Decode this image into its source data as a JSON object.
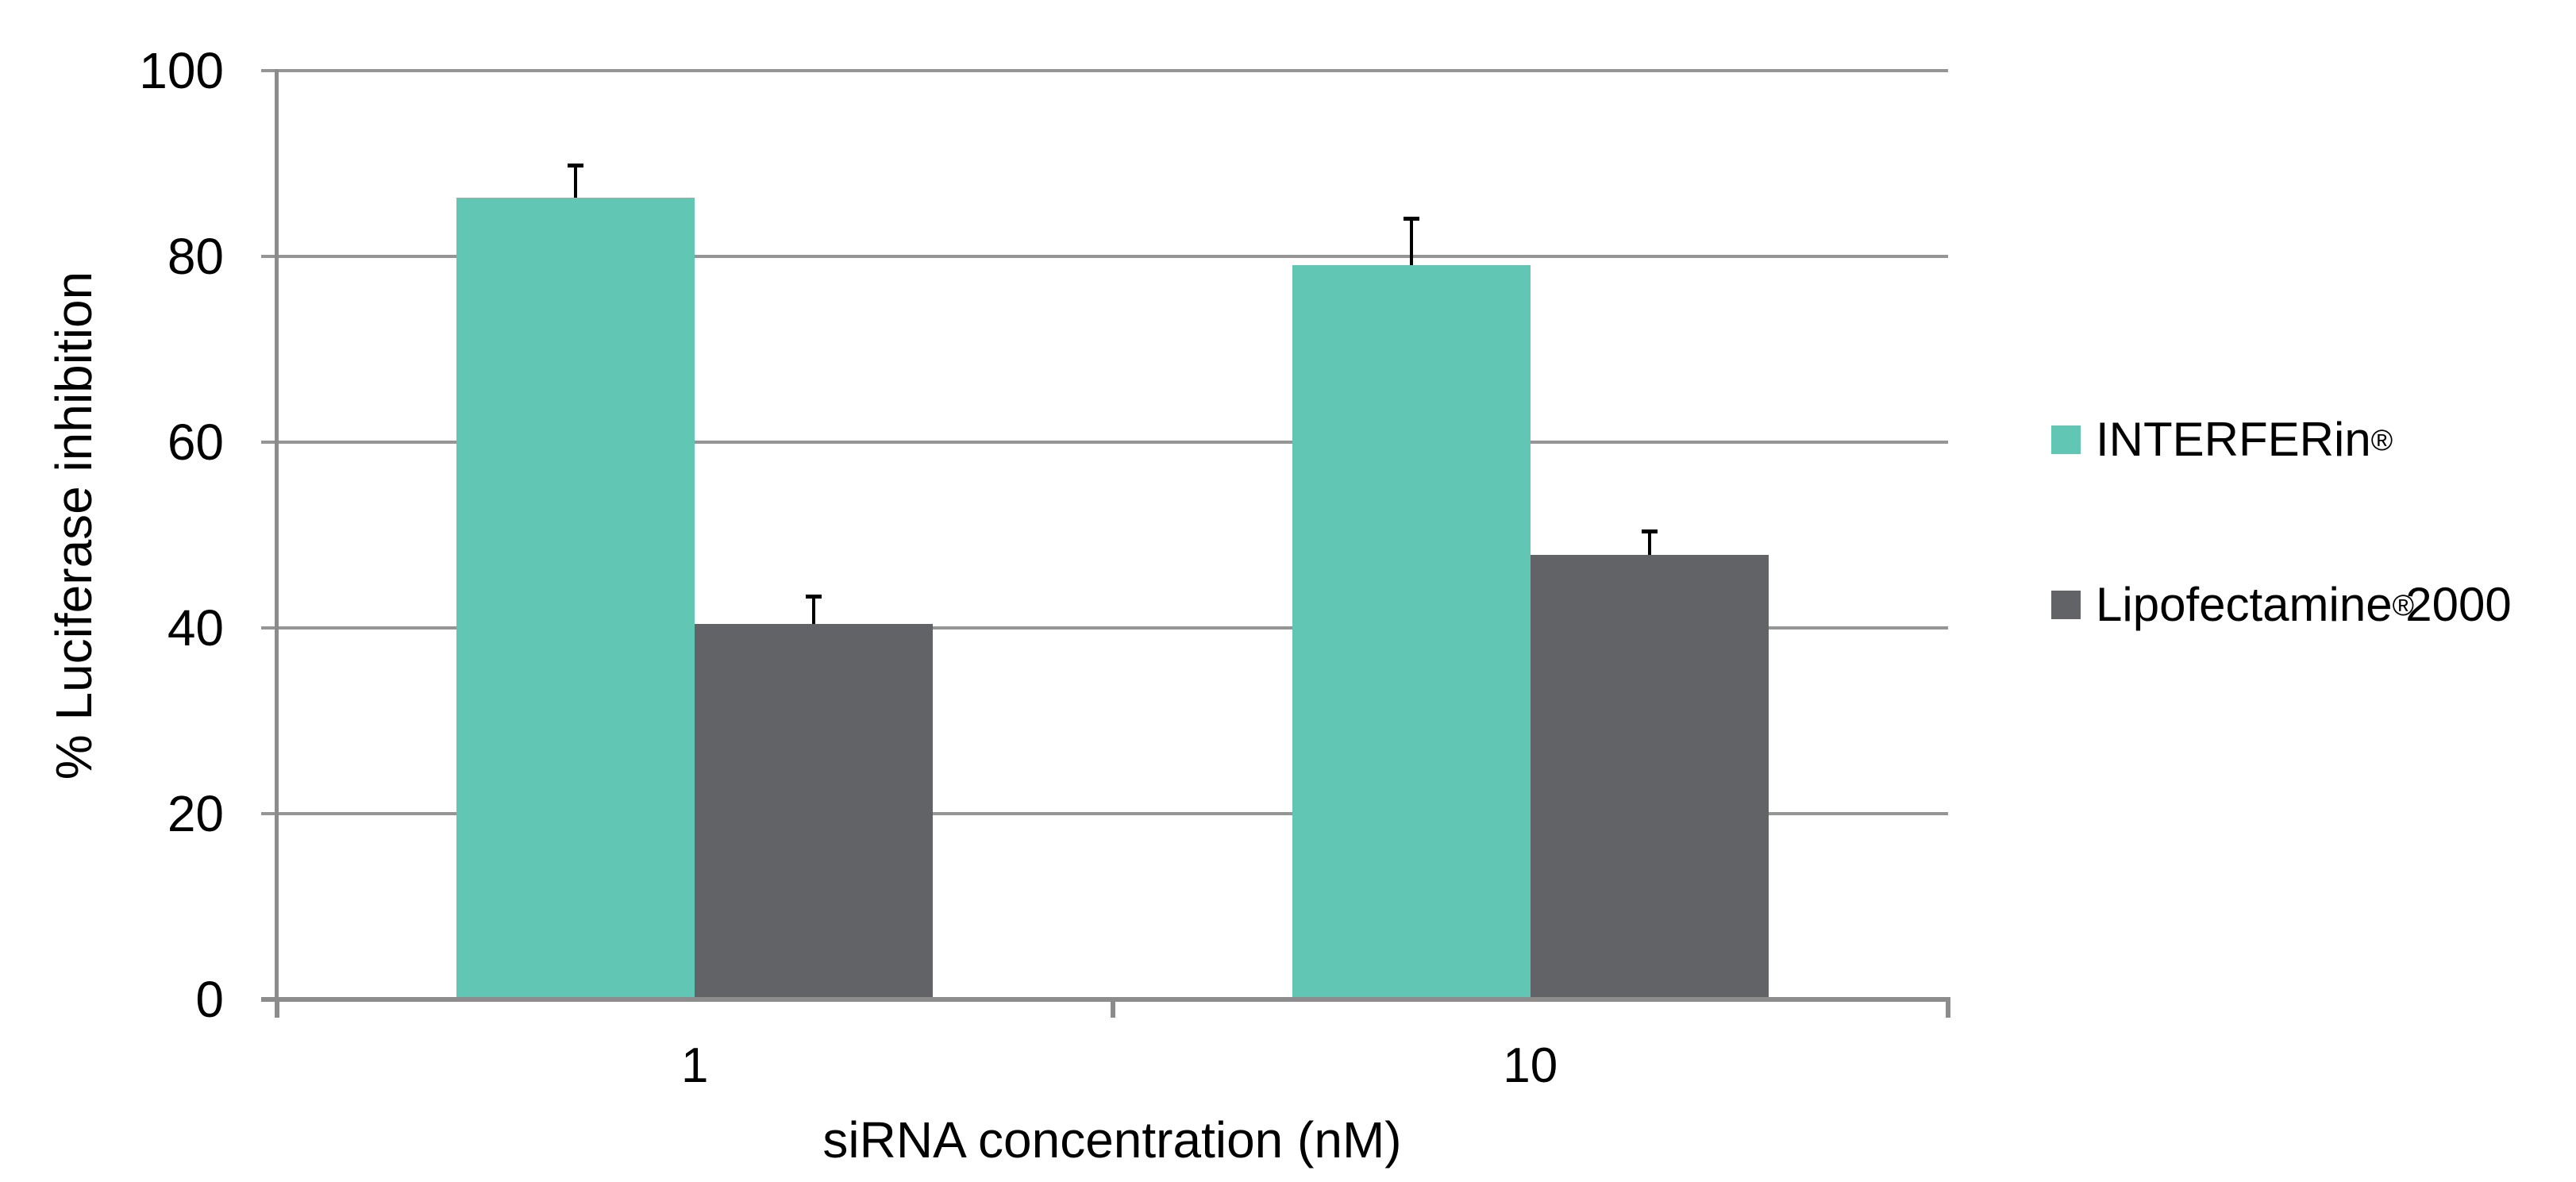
{
  "chart_data": {
    "type": "bar",
    "title": "",
    "categories": [
      "1",
      "10"
    ],
    "series": [
      {
        "name": "INTERFERin®",
        "color": "#62C6B4",
        "values": [
          86.3,
          79.1
        ],
        "errors_plus": [
          3.5,
          5.0
        ]
      },
      {
        "name": "Lipofectamine® 2000",
        "color": "#616367",
        "values": [
          40.4,
          47.9
        ],
        "errors_plus": [
          3.0,
          2.5
        ]
      }
    ],
    "xlabel": "siRNA concentration (nM)",
    "ylabel": "% Luciferase inhibition",
    "ylim": [
      0,
      100
    ],
    "yticks": [
      0,
      20,
      40,
      60,
      80,
      100
    ],
    "grid": "horizontal",
    "legend_position": "right",
    "error_bars": "upper only, black caps"
  },
  "colors": {
    "background": "#FFFFFF",
    "gridline": "#959595",
    "axis": "#8C8C8C",
    "error_bar": "#000000",
    "text": "#000000"
  }
}
